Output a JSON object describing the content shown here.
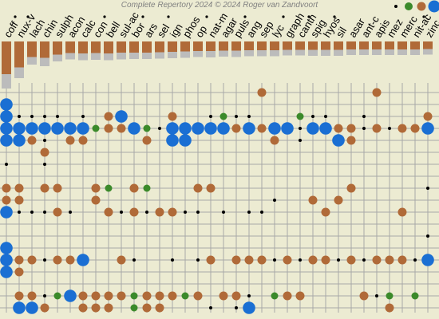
{
  "header": {
    "copyright": "Complete Repertory 2024 © 2024 Roger van Zandvoort"
  },
  "remedies": [
    "coff",
    "nux-v",
    "lach",
    "chin",
    "sulph",
    "acon",
    "calc",
    "con",
    "bell",
    "sul-ac",
    "bor",
    "ars",
    "sel",
    "ign",
    "phos",
    "op",
    "nat-m",
    "agar",
    "puls",
    "ang",
    "sep",
    "lyc",
    "graph",
    "canth",
    "spig",
    "hyos",
    "sil",
    "asar",
    "ant-c",
    "apis",
    "mez",
    "merc",
    "nit-ac",
    "zinc"
  ],
  "dot_marks": [
    "coff",
    "nux-v",
    "con",
    "bor",
    "sel",
    "op",
    "puls",
    "lyc",
    "canth",
    "hyos",
    "nit-ac"
  ],
  "bar_levels": [
    [
      0.82,
      0.36
    ],
    [
      0.65,
      0.27
    ],
    [
      0.39,
      0.19
    ],
    [
      0.41,
      0.21
    ],
    [
      0.33,
      0.17
    ],
    [
      0.29,
      0.16
    ],
    [
      0.3,
      0.17
    ],
    [
      0.29,
      0.17
    ],
    [
      0.3,
      0.17
    ],
    [
      0.28,
      0.17
    ],
    [
      0.28,
      0.16
    ],
    [
      0.28,
      0.16
    ],
    [
      0.27,
      0.16
    ],
    [
      0.26,
      0.16
    ],
    [
      0.25,
      0.16
    ],
    [
      0.24,
      0.15
    ],
    [
      0.24,
      0.16
    ],
    [
      0.23,
      0.15
    ],
    [
      0.23,
      0.16
    ],
    [
      0.22,
      0.15
    ],
    [
      0.22,
      0.15
    ],
    [
      0.22,
      0.15
    ],
    [
      0.21,
      0.14
    ],
    [
      0.21,
      0.14
    ],
    [
      0.21,
      0.15
    ],
    [
      0.21,
      0.15
    ],
    [
      0.21,
      0.15
    ],
    [
      0.2,
      0.14
    ],
    [
      0.2,
      0.14
    ],
    [
      0.2,
      0.14
    ],
    [
      0.2,
      0.14
    ],
    [
      0.2,
      0.14
    ],
    [
      0.2,
      0.14
    ],
    [
      0.19,
      0.14
    ]
  ],
  "legend": [
    {
      "name": "grade-1",
      "color": "#000000"
    },
    {
      "name": "grade-2",
      "color": "#3b8a2a"
    },
    {
      "name": "grade-3",
      "color": "#b06a38"
    },
    {
      "name": "grade-4",
      "color": "#1a6fd3"
    }
  ],
  "colors": {
    "brown": "#b06a38",
    "gray": "#bcbcbc",
    "grid": "#a8a8a8",
    "green": "#3b8a2a",
    "blue": "#1a6fd3",
    "black": "#000000"
  },
  "rubric_rows": [
    "20:3,29:3",
    "0:4",
    "0:4,1:1,2:1,3:1,4:1,6:1,8:3,9:4,13:3,16:1,17:2,18:1,19:1,23:2,24:1,25:1,28:1,33:3",
    "0:4,1:4,2:4,3:4,4:4,5:4,6:4,7:2,8:3,9:3,10:4,11:2,12:1,13:4,14:4,15:4,16:4,17:4,18:3,19:4,20:3,21:4,22:4,23:1,24:4,25:4,26:3,27:3,28:1,29:3,30:1,31:3,32:3,33:4",
    "0:4,1:4,2:3,3:1,5:3,6:3,11:3,13:4,14:4,21:3,23:1,26:4,27:3",
    "3:3",
    "0:1,3:1",
    "",
    "0:3,1:3,3:3,4:3,7:3,8:2,10:3,11:2,15:3,16:3,27:3,33:1",
    "0:3,1:3,7:3,21:1,24:3,26:3",
    "0:4,1:1,2:1,3:1,4:3,5:1,8:3,9:1,10:3,11:1,12:3,13:3,14:1,15:1,17:1,19:1,20:1,25:3,31:3",
    "",
    "33:1",
    "0:4",
    "0:4,1:3,2:3,3:1,4:3,5:3,6:4,9:3,10:1,13:1,15:1,16:3,18:3,19:3,20:3,21:1,22:3,23:1,24:3,25:3,26:1,27:3,28:1,29:3,30:3,31:3,32:1,33:4",
    "0:4,1:3",
    "",
    "1:3,2:3,3:1,4:2,5:4,6:3,7:3,8:3,9:3,10:2,11:3,12:3,13:3,14:2,15:3,17:3,18:3,19:1,21:2,22:3,23:3,28:3,29:1,30:2,32:2",
    "1:4,2:4,3:3,6:3,7:3,8:3,10:2,11:3,12:3,16:1,18:1,19:4,30:3"
  ]
}
